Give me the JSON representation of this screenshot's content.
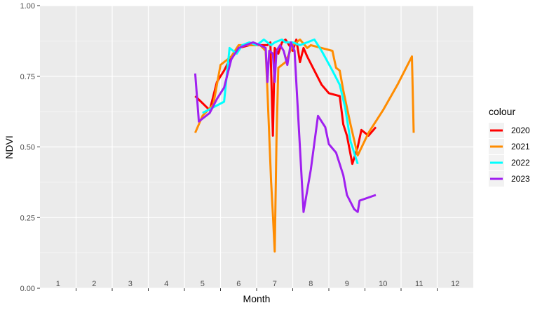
{
  "chart_data": {
    "type": "line",
    "title": "",
    "xlabel": "Month",
    "ylabel": "NDVI",
    "xlim": [
      0.5,
      12.5
    ],
    "ylim": [
      0,
      1
    ],
    "x_ticks": [
      1,
      2,
      3,
      4,
      5,
      6,
      7,
      8,
      9,
      10,
      11,
      12
    ],
    "x_tick_labels": [
      "1",
      "2",
      "3",
      "4",
      "5",
      "6",
      "7",
      "8",
      "9",
      "10",
      "11",
      "12"
    ],
    "y_ticks": [
      0,
      0.25,
      0.5,
      0.75,
      1
    ],
    "y_tick_labels": [
      "0.00",
      "0.25",
      "0.50",
      "0.75",
      "1.00"
    ],
    "grid": true,
    "legend": {
      "title": "colour",
      "position": "right"
    },
    "series": [
      {
        "name": "2020",
        "color": "#FF0000",
        "points": [
          [
            4.8,
            0.68
          ],
          [
            5.2,
            0.63
          ],
          [
            5.4,
            0.73
          ],
          [
            5.6,
            0.77
          ],
          [
            5.8,
            0.82
          ],
          [
            6.0,
            0.85
          ],
          [
            6.3,
            0.86
          ],
          [
            6.5,
            0.86
          ],
          [
            6.8,
            0.86
          ],
          [
            6.88,
            0.87
          ],
          [
            6.95,
            0.54
          ],
          [
            7.0,
            0.85
          ],
          [
            7.1,
            0.83
          ],
          [
            7.2,
            0.87
          ],
          [
            7.3,
            0.88
          ],
          [
            7.4,
            0.86
          ],
          [
            7.5,
            0.84
          ],
          [
            7.6,
            0.88
          ],
          [
            7.7,
            0.8
          ],
          [
            7.8,
            0.85
          ],
          [
            7.9,
            0.82
          ],
          [
            8.1,
            0.77
          ],
          [
            8.3,
            0.72
          ],
          [
            8.5,
            0.69
          ],
          [
            8.8,
            0.68
          ],
          [
            8.9,
            0.58
          ],
          [
            9.0,
            0.54
          ],
          [
            9.15,
            0.44
          ],
          [
            9.3,
            0.5
          ],
          [
            9.4,
            0.56
          ],
          [
            9.6,
            0.54
          ],
          [
            9.8,
            0.57
          ]
        ]
      },
      {
        "name": "2021",
        "color": "#FF8C00",
        "points": [
          [
            4.8,
            0.55
          ],
          [
            5.0,
            0.61
          ],
          [
            5.3,
            0.65
          ],
          [
            5.5,
            0.79
          ],
          [
            5.8,
            0.82
          ],
          [
            6.0,
            0.86
          ],
          [
            6.3,
            0.86
          ],
          [
            6.6,
            0.86
          ],
          [
            6.75,
            0.84
          ],
          [
            6.8,
            0.7
          ],
          [
            6.9,
            0.38
          ],
          [
            6.95,
            0.26
          ],
          [
            7.0,
            0.13
          ],
          [
            7.05,
            0.52
          ],
          [
            7.1,
            0.78
          ],
          [
            7.3,
            0.8
          ],
          [
            7.5,
            0.86
          ],
          [
            7.7,
            0.88
          ],
          [
            7.9,
            0.85
          ],
          [
            8.0,
            0.86
          ],
          [
            8.3,
            0.85
          ],
          [
            8.6,
            0.84
          ],
          [
            8.7,
            0.78
          ],
          [
            8.8,
            0.77
          ],
          [
            8.9,
            0.7
          ],
          [
            9.1,
            0.58
          ],
          [
            9.3,
            0.47
          ],
          [
            9.6,
            0.55
          ],
          [
            10.0,
            0.63
          ],
          [
            10.4,
            0.72
          ],
          [
            10.8,
            0.82
          ],
          [
            10.85,
            0.55
          ]
        ]
      },
      {
        "name": "2022",
        "color": "#00FFFF",
        "points": [
          [
            5.0,
            0.62
          ],
          [
            5.3,
            0.64
          ],
          [
            5.6,
            0.66
          ],
          [
            5.75,
            0.85
          ],
          [
            5.95,
            0.83
          ],
          [
            6.1,
            0.86
          ],
          [
            6.3,
            0.87
          ],
          [
            6.5,
            0.86
          ],
          [
            6.7,
            0.88
          ],
          [
            6.9,
            0.86
          ],
          [
            7.0,
            0.87
          ],
          [
            7.2,
            0.88
          ],
          [
            7.3,
            0.87
          ],
          [
            7.5,
            0.87
          ],
          [
            7.7,
            0.86
          ],
          [
            7.9,
            0.87
          ],
          [
            8.1,
            0.88
          ],
          [
            8.3,
            0.84
          ],
          [
            8.6,
            0.77
          ],
          [
            8.8,
            0.72
          ],
          [
            8.95,
            0.64
          ],
          [
            9.1,
            0.52
          ],
          [
            9.3,
            0.44
          ]
        ]
      },
      {
        "name": "2023",
        "color": "#A020F0",
        "points": [
          [
            4.8,
            0.76
          ],
          [
            4.9,
            0.59
          ],
          [
            5.2,
            0.62
          ],
          [
            5.4,
            0.67
          ],
          [
            5.6,
            0.71
          ],
          [
            5.8,
            0.81
          ],
          [
            6.0,
            0.85
          ],
          [
            6.2,
            0.86
          ],
          [
            6.4,
            0.87
          ],
          [
            6.6,
            0.86
          ],
          [
            6.75,
            0.85
          ],
          [
            6.8,
            0.73
          ],
          [
            6.85,
            0.84
          ],
          [
            6.95,
            0.83
          ],
          [
            7.0,
            0.73
          ],
          [
            7.05,
            0.84
          ],
          [
            7.15,
            0.86
          ],
          [
            7.25,
            0.84
          ],
          [
            7.35,
            0.79
          ],
          [
            7.45,
            0.87
          ],
          [
            7.55,
            0.84
          ],
          [
            7.8,
            0.27
          ],
          [
            8.0,
            0.42
          ],
          [
            8.2,
            0.61
          ],
          [
            8.4,
            0.57
          ],
          [
            8.5,
            0.51
          ],
          [
            8.7,
            0.48
          ],
          [
            8.9,
            0.4
          ],
          [
            9.0,
            0.33
          ],
          [
            9.2,
            0.28
          ],
          [
            9.3,
            0.27
          ],
          [
            9.35,
            0.31
          ],
          [
            9.8,
            0.33
          ]
        ]
      }
    ]
  }
}
